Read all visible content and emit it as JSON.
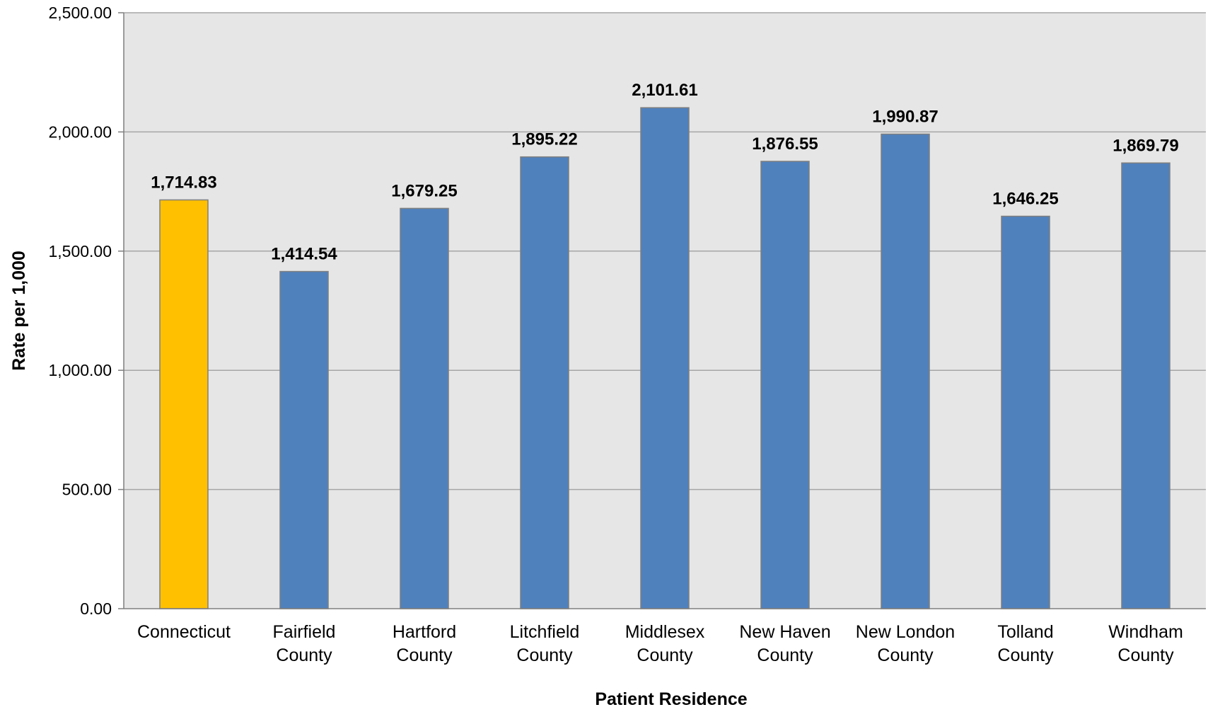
{
  "chart_data": {
    "type": "bar",
    "title": "",
    "xlabel": "Patient Residence",
    "ylabel": "Rate per 1,000",
    "categories": [
      [
        "Connecticut"
      ],
      [
        "Fairfield",
        "County"
      ],
      [
        "Hartford",
        "County"
      ],
      [
        "Litchfield",
        "County"
      ],
      [
        "Middlesex",
        "County"
      ],
      [
        "New Haven",
        "County"
      ],
      [
        "New London",
        "County"
      ],
      [
        "Tolland",
        "County"
      ],
      [
        "Windham",
        "County"
      ]
    ],
    "values": [
      1714.83,
      1414.54,
      1679.25,
      1895.22,
      2101.61,
      1876.55,
      1990.87,
      1646.25,
      1869.79
    ],
    "data_labels": [
      "1,714.83",
      "1,414.54",
      "1,679.25",
      "1,895.22",
      "2,101.61",
      "1,876.55",
      "1,990.87",
      "1,646.25",
      "1,869.79"
    ],
    "ylim": [
      0,
      2500
    ],
    "yticks": [
      0,
      500,
      1000,
      1500,
      2000,
      2500
    ],
    "ytick_labels": [
      "0.00",
      "500.00",
      "1,000.00",
      "1,500.00",
      "2,000.00",
      "2,500.00"
    ],
    "grid": true,
    "legend": "none",
    "colors": {
      "highlight_bar": "#FFC000",
      "bar": "#4F81BD",
      "bar_border": "#7F7F7F",
      "plot_background": "#E6E6E6",
      "gridline": "#A6A6A6",
      "axis": "#7F7F7F"
    },
    "highlight_index": 0
  }
}
